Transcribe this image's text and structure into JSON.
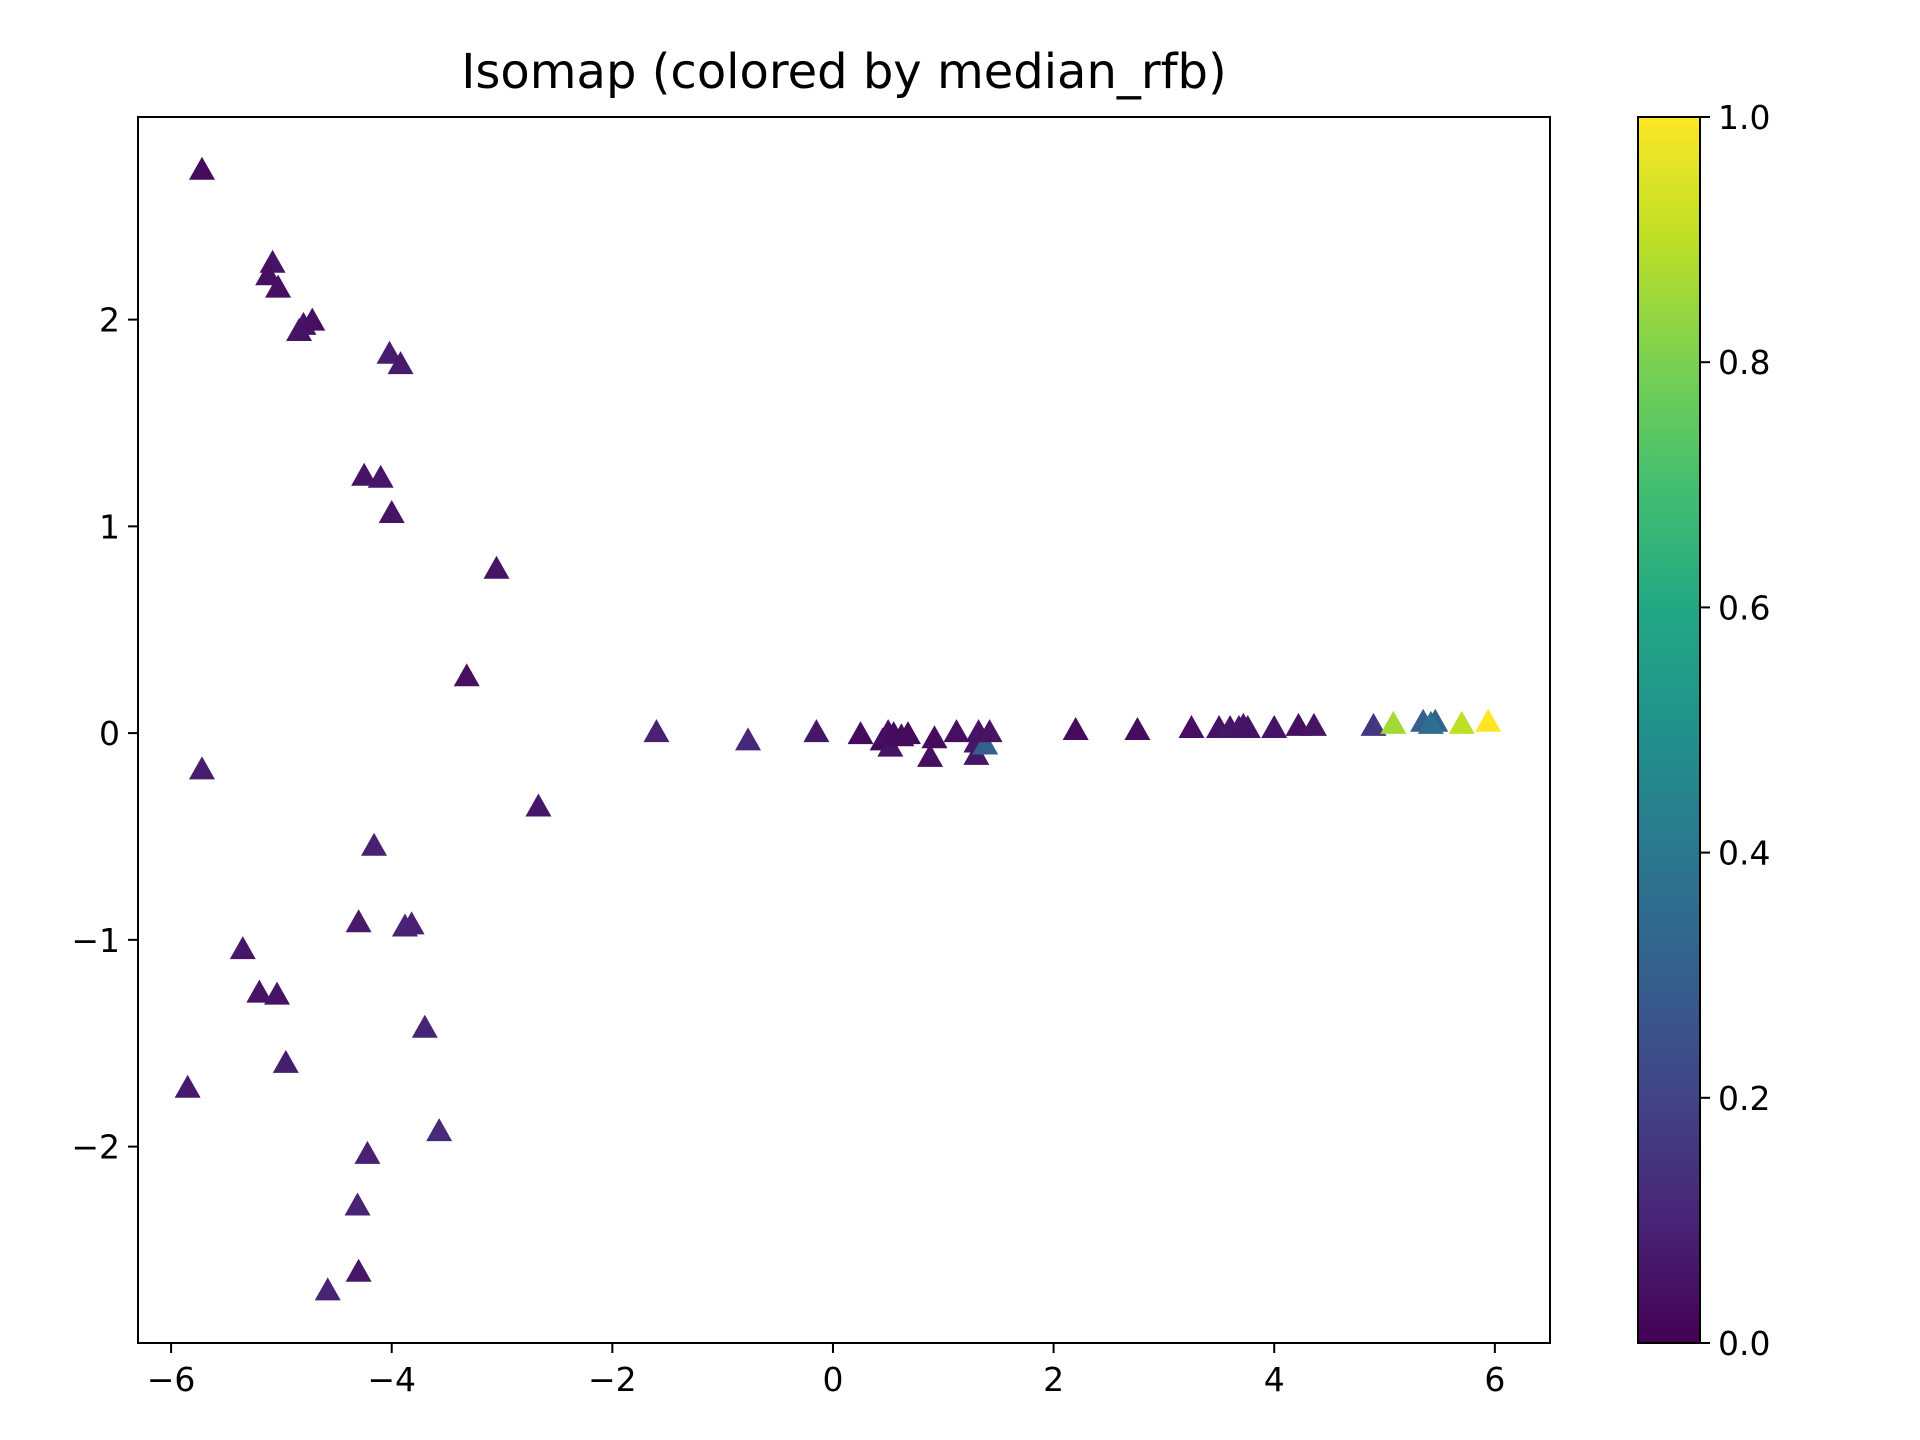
{
  "chart_data": {
    "type": "scatter",
    "title": "Isomap (colored by median_rfb)",
    "xlabel": "",
    "ylabel": "",
    "marker": "triangle-up",
    "xlim": [
      -6.3,
      6.5
    ],
    "ylim": [
      -2.95,
      2.98
    ],
    "xticks": [
      -6,
      -4,
      -2,
      0,
      2,
      4,
      6
    ],
    "yticks": [
      -2,
      -1,
      0,
      1,
      2
    ],
    "colorbar": {
      "label": "",
      "range": [
        0.0,
        1.0
      ],
      "ticks": [
        0.0,
        0.2,
        0.4,
        0.6,
        0.8,
        1.0
      ],
      "colormap": "viridis"
    },
    "grid": false,
    "points": [
      {
        "x": -5.72,
        "y": 2.72,
        "c": 0.03
      },
      {
        "x": -5.08,
        "y": 2.27,
        "c": 0.05
      },
      {
        "x": -5.12,
        "y": 2.21,
        "c": 0.04
      },
      {
        "x": -5.03,
        "y": 2.15,
        "c": 0.04
      },
      {
        "x": -4.8,
        "y": 1.97,
        "c": 0.05
      },
      {
        "x": -4.72,
        "y": 1.99,
        "c": 0.04
      },
      {
        "x": -4.84,
        "y": 1.94,
        "c": 0.05
      },
      {
        "x": -4.02,
        "y": 1.83,
        "c": 0.08
      },
      {
        "x": -3.92,
        "y": 1.78,
        "c": 0.07
      },
      {
        "x": -4.25,
        "y": 1.24,
        "c": 0.05
      },
      {
        "x": -4.1,
        "y": 1.23,
        "c": 0.06
      },
      {
        "x": -4.0,
        "y": 1.06,
        "c": 0.05
      },
      {
        "x": -3.05,
        "y": 0.79,
        "c": 0.05
      },
      {
        "x": -3.32,
        "y": 0.27,
        "c": 0.04
      },
      {
        "x": -2.67,
        "y": -0.36,
        "c": 0.06
      },
      {
        "x": -5.72,
        "y": -0.18,
        "c": 0.08
      },
      {
        "x": -4.16,
        "y": -0.55,
        "c": 0.09
      },
      {
        "x": -4.3,
        "y": -0.92,
        "c": 0.07
      },
      {
        "x": -3.88,
        "y": -0.94,
        "c": 0.1
      },
      {
        "x": -3.82,
        "y": -0.93,
        "c": 0.09
      },
      {
        "x": -5.35,
        "y": -1.05,
        "c": 0.06
      },
      {
        "x": -5.2,
        "y": -1.26,
        "c": 0.05
      },
      {
        "x": -5.04,
        "y": -1.27,
        "c": 0.05
      },
      {
        "x": -3.7,
        "y": -1.43,
        "c": 0.1
      },
      {
        "x": -4.96,
        "y": -1.6,
        "c": 0.08
      },
      {
        "x": -5.85,
        "y": -1.72,
        "c": 0.07
      },
      {
        "x": -3.57,
        "y": -1.93,
        "c": 0.12
      },
      {
        "x": -4.22,
        "y": -2.04,
        "c": 0.09
      },
      {
        "x": -4.31,
        "y": -2.29,
        "c": 0.1
      },
      {
        "x": -4.3,
        "y": -2.61,
        "c": 0.06
      },
      {
        "x": -4.58,
        "y": -2.7,
        "c": 0.1
      },
      {
        "x": -1.6,
        "y": 0.0,
        "c": 0.09
      },
      {
        "x": -0.77,
        "y": -0.04,
        "c": 0.11
      },
      {
        "x": -0.15,
        "y": 0.0,
        "c": 0.06
      },
      {
        "x": 0.25,
        "y": -0.01,
        "c": 0.03
      },
      {
        "x": 0.45,
        "y": -0.04,
        "c": 0.03
      },
      {
        "x": 0.5,
        "y": 0.0,
        "c": 0.04
      },
      {
        "x": 0.52,
        "y": -0.07,
        "c": 0.05
      },
      {
        "x": 0.55,
        "y": -0.01,
        "c": 0.03
      },
      {
        "x": 0.62,
        "y": -0.02,
        "c": 0.03
      },
      {
        "x": 0.68,
        "y": -0.01,
        "c": 0.03
      },
      {
        "x": 0.88,
        "y": -0.12,
        "c": 0.04
      },
      {
        "x": 0.92,
        "y": -0.03,
        "c": 0.03
      },
      {
        "x": 1.12,
        "y": 0.0,
        "c": 0.04
      },
      {
        "x": 1.3,
        "y": -0.11,
        "c": 0.06
      },
      {
        "x": 1.3,
        "y": -0.05,
        "c": 0.06
      },
      {
        "x": 1.38,
        "y": -0.06,
        "c": 0.3
      },
      {
        "x": 1.32,
        "y": 0.0,
        "c": 0.05
      },
      {
        "x": 1.42,
        "y": 0.0,
        "c": 0.05
      },
      {
        "x": 2.2,
        "y": 0.01,
        "c": 0.03
      },
      {
        "x": 2.76,
        "y": 0.01,
        "c": 0.03
      },
      {
        "x": 3.25,
        "y": 0.02,
        "c": 0.04
      },
      {
        "x": 3.5,
        "y": 0.02,
        "c": 0.05
      },
      {
        "x": 3.6,
        "y": 0.02,
        "c": 0.06
      },
      {
        "x": 3.68,
        "y": 0.02,
        "c": 0.06
      },
      {
        "x": 3.72,
        "y": 0.03,
        "c": 0.05
      },
      {
        "x": 3.76,
        "y": 0.02,
        "c": 0.05
      },
      {
        "x": 4.0,
        "y": 0.02,
        "c": 0.05
      },
      {
        "x": 4.22,
        "y": 0.03,
        "c": 0.04
      },
      {
        "x": 4.36,
        "y": 0.03,
        "c": 0.05
      },
      {
        "x": 4.9,
        "y": 0.03,
        "c": 0.16
      },
      {
        "x": 5.08,
        "y": 0.04,
        "c": 0.86
      },
      {
        "x": 5.35,
        "y": 0.05,
        "c": 0.3
      },
      {
        "x": 5.46,
        "y": 0.05,
        "c": 0.3
      },
      {
        "x": 5.42,
        "y": 0.04,
        "c": 0.36
      },
      {
        "x": 5.7,
        "y": 0.04,
        "c": 0.9
      },
      {
        "x": 5.94,
        "y": 0.05,
        "c": 1.0
      }
    ]
  }
}
